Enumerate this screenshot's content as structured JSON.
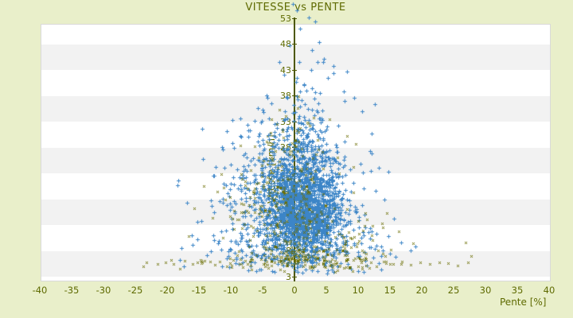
{
  "colors": {
    "background": "#e9efca",
    "plot_bg": "#ffffff",
    "band": "#f2f2f2",
    "plot_border": "#d9d9d9",
    "text": "#5e6a00",
    "axis_line": "#4d5802",
    "series_blue": "#3c85c7",
    "series_olive": "#6b6f04"
  },
  "chart_data": {
    "type": "scatter",
    "title": "VITESSE vs PENTE",
    "xlabel": "Pente [%]",
    "ylabel": "Vitesse [km/h]",
    "xlim": [
      -40,
      40
    ],
    "ylim": [
      3,
      53
    ],
    "xticks": [
      -40,
      -35,
      -30,
      -25,
      -20,
      -15,
      -10,
      -5,
      0,
      5,
      10,
      15,
      20,
      25,
      30,
      35,
      40
    ],
    "yticks": [
      53,
      48,
      43,
      38,
      33,
      28,
      23,
      18,
      13,
      8,
      3
    ],
    "grid": "alternating-horizontal-bands",
    "legend": "none",
    "seed": 7,
    "series": [
      {
        "name": "vitesse-points-blue",
        "marker": "plus",
        "color": "#3c85c7",
        "x_clip": [
          -20.5,
          20.5
        ],
        "y_clip": [
          3.6,
          53.4
        ],
        "clusters": [
          {
            "n": 1500,
            "x_mean": 1.5,
            "x_sd": 3.0,
            "y_mean": 16.0,
            "y_sd": 4.8
          },
          {
            "n": 550,
            "x_mean": -1.5,
            "x_sd": 5.5,
            "y_mean": 19.0,
            "y_sd": 6.5
          },
          {
            "n": 280,
            "x_mean": 1.2,
            "x_sd": 2.4,
            "y_mean": 27.0,
            "y_sd": 7.5
          },
          {
            "n": 170,
            "x_mean": 0.0,
            "x_sd": 7.5,
            "y_mean": 8.5,
            "y_sd": 2.4
          }
        ],
        "outliers": [
          [
            -0.3,
            55.8
          ],
          [
            0.4,
            54.6
          ],
          [
            2.3,
            53.2
          ],
          [
            3.2,
            52.4
          ],
          [
            0.9,
            51.1
          ],
          [
            3.9,
            48.4
          ],
          [
            -0.8,
            47.8
          ],
          [
            2.7,
            46.9
          ],
          [
            4.6,
            45.2
          ],
          [
            -2.4,
            44.6
          ],
          [
            6.1,
            43.8
          ],
          [
            8.2,
            42.7
          ],
          [
            -1.6,
            42.2
          ],
          [
            5.3,
            41.5
          ],
          [
            0.2,
            40.8
          ],
          [
            9.4,
            37.6
          ],
          [
            10.6,
            35.1
          ],
          [
            -5.8,
            35.6
          ],
          [
            7.7,
            38.9
          ],
          [
            -4.4,
            38.2
          ],
          [
            12.1,
            30.7
          ],
          [
            13.3,
            24.1
          ],
          [
            14.7,
            23.4
          ],
          [
            12.8,
            19.6
          ],
          [
            15.6,
            14.2
          ],
          [
            16.8,
            9.6
          ],
          [
            13.6,
            8.8
          ],
          [
            11.9,
            12.4
          ],
          [
            14.1,
            17.9
          ],
          [
            -18.4,
            20.7
          ],
          [
            -16.9,
            17.3
          ],
          [
            -15.3,
            10.2
          ],
          [
            -14.6,
            13.8
          ],
          [
            -13.1,
            7.9
          ],
          [
            -17.8,
            8.6
          ],
          [
            -12.4,
            24.3
          ],
          [
            -11.2,
            27.6
          ],
          [
            -10.6,
            31.2
          ],
          [
            -9.8,
            33.4
          ],
          [
            -7.2,
            4.3
          ],
          [
            -3.5,
            4.1
          ],
          [
            1.8,
            4.4
          ],
          [
            5.2,
            4.2
          ],
          [
            8.9,
            4.6
          ],
          [
            -10.3,
            4.8
          ],
          [
            11.4,
            5.1
          ]
        ]
      },
      {
        "name": "vitesse-points-olive",
        "marker": "x",
        "color": "#6b6f04",
        "x_clip": [
          -24,
          28
        ],
        "y_clip": [
          3.8,
          38.5
        ],
        "clusters": [
          {
            "n": 220,
            "x_mean": -2.0,
            "x_sd": 4.0,
            "y_mean": 17.5,
            "y_sd": 4.6
          },
          {
            "n": 150,
            "x_mean": 1.0,
            "x_sd": 8.0,
            "y_mean": 5.9,
            "y_sd": 0.9
          },
          {
            "n": 90,
            "x_mean": 6.0,
            "x_sd": 5.5,
            "y_mean": 9.0,
            "y_sd": 3.2
          },
          {
            "n": 45,
            "x_mean": -0.5,
            "x_sd": 3.0,
            "y_mean": 27.0,
            "y_sd": 4.5
          },
          {
            "n": 40,
            "x_mean": 0.5,
            "x_sd": 1.2,
            "y_mean": 7.2,
            "y_sd": 1.0
          }
        ],
        "outliers": [
          [
            -23.2,
            5.7
          ],
          [
            -21.5,
            5.5
          ],
          [
            -20.3,
            5.8
          ],
          [
            -19.0,
            5.5
          ],
          [
            -17.2,
            6.1
          ],
          [
            -16.0,
            5.4
          ],
          [
            -14.5,
            5.7
          ],
          [
            -13.2,
            6.0
          ],
          [
            -12.5,
            5.3
          ],
          [
            27.3,
            5.7
          ],
          [
            25.6,
            5.2
          ],
          [
            24.1,
            5.6
          ],
          [
            22.8,
            5.8
          ],
          [
            21.2,
            5.4
          ],
          [
            19.8,
            5.7
          ],
          [
            18.3,
            5.3
          ],
          [
            16.9,
            5.9
          ],
          [
            15.5,
            5.5
          ],
          [
            26.9,
            9.7
          ],
          [
            18.6,
            9.4
          ],
          [
            15.1,
            8.3
          ],
          [
            13.9,
            12.6
          ],
          [
            16.4,
            11.8
          ],
          [
            0.6,
            37.9
          ],
          [
            -1.4,
            34.2
          ],
          [
            2.1,
            32.8
          ],
          [
            -3.8,
            30.9
          ],
          [
            8.3,
            30.2
          ],
          [
            9.6,
            28.7
          ],
          [
            -6.2,
            28.3
          ],
          [
            -15.8,
            16.2
          ],
          [
            -14.2,
            20.5
          ],
          [
            -12.9,
            14.4
          ],
          [
            -11.5,
            22.8
          ],
          [
            -16.6,
            10.8
          ]
        ]
      }
    ]
  }
}
